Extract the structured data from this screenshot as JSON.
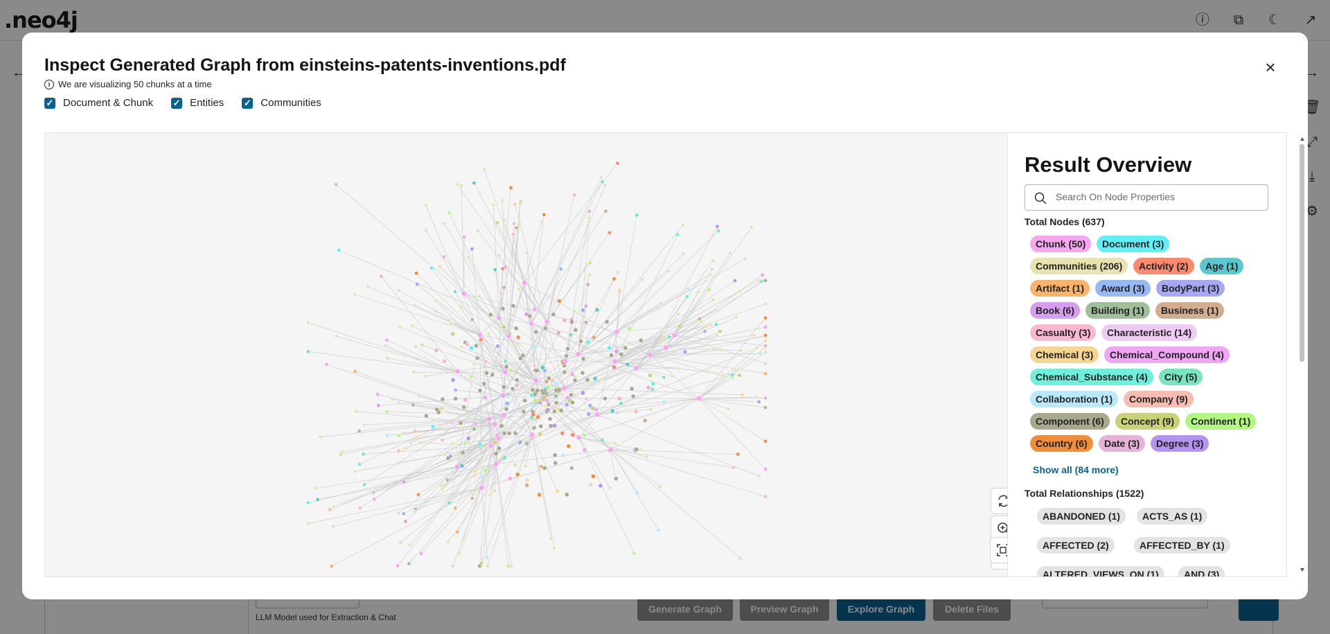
{
  "app": {
    "logo": ".neo4j"
  },
  "background": {
    "buttons": [
      "Generate Graph",
      "Preview Graph",
      "Explore Graph",
      "Delete Files"
    ],
    "llm_caption": "LLM Model used for Extraction & Chat"
  },
  "modal": {
    "title": "Inspect Generated Graph from einsteins-patents-inventions.pdf",
    "info": "We are visualizing 50 chunks at a time",
    "checkboxes": [
      {
        "label": "Document & Chunk",
        "checked": true
      },
      {
        "label": "Entities",
        "checked": true
      },
      {
        "label": "Communities",
        "checked": true
      }
    ]
  },
  "overview": {
    "title": "Result Overview",
    "search_placeholder": "Search On Node Properties",
    "total_nodes": "Total Nodes (637)",
    "node_chips": [
      {
        "label": "Chunk (50)",
        "color": "#f5a6ee"
      },
      {
        "label": "Document (3)",
        "color": "#5ef0f5"
      },
      {
        "label": "Communities (206)",
        "color": "#e8e3b0"
      },
      {
        "label": "Activity (2)",
        "color": "#f98a6e"
      },
      {
        "label": "Age (1)",
        "color": "#5bc8cf"
      },
      {
        "label": "Artifact (1)",
        "color": "#fab36b"
      },
      {
        "label": "Award (3)",
        "color": "#96b8f5"
      },
      {
        "label": "BodyPart (3)",
        "color": "#a7a7f4"
      },
      {
        "label": "Book (6)",
        "color": "#d79ef0"
      },
      {
        "label": "Building (1)",
        "color": "#9fbf9a"
      },
      {
        "label": "Business (1)",
        "color": "#d2ad8f"
      },
      {
        "label": "Casualty (3)",
        "color": "#f9b8cf"
      },
      {
        "label": "Characteristic (14)",
        "color": "#eecbf3"
      },
      {
        "label": "Chemical (3)",
        "color": "#f6d590"
      },
      {
        "label": "Chemical_Compound (4)",
        "color": "#f0a6f5"
      },
      {
        "label": "Chemical_Substance (4)",
        "color": "#6ef0db"
      },
      {
        "label": "City (5)",
        "color": "#7ae3c0"
      },
      {
        "label": "Collaboration (1)",
        "color": "#b9e8f9"
      },
      {
        "label": "Company (9)",
        "color": "#f9bcb0"
      },
      {
        "label": "Component (6)",
        "color": "#a8a88c"
      },
      {
        "label": "Concept (9)",
        "color": "#cbd179"
      },
      {
        "label": "Continent (1)",
        "color": "#b2f780"
      },
      {
        "label": "Country (6)",
        "color": "#f08d3a"
      },
      {
        "label": "Date (3)",
        "color": "#e6b3d6"
      },
      {
        "label": "Degree (3)",
        "color": "#b293f0"
      }
    ],
    "show_all": "Show all (84 more)",
    "total_relationships": "Total Relationships (1522)",
    "relationships": [
      "ABANDONED (1)",
      "ACTS_AS (1)",
      "AFFECTED (2)",
      "AFFECTED_BY (1)",
      "ALTERED_VIEWS_ON (1)",
      "AND (3)"
    ]
  }
}
